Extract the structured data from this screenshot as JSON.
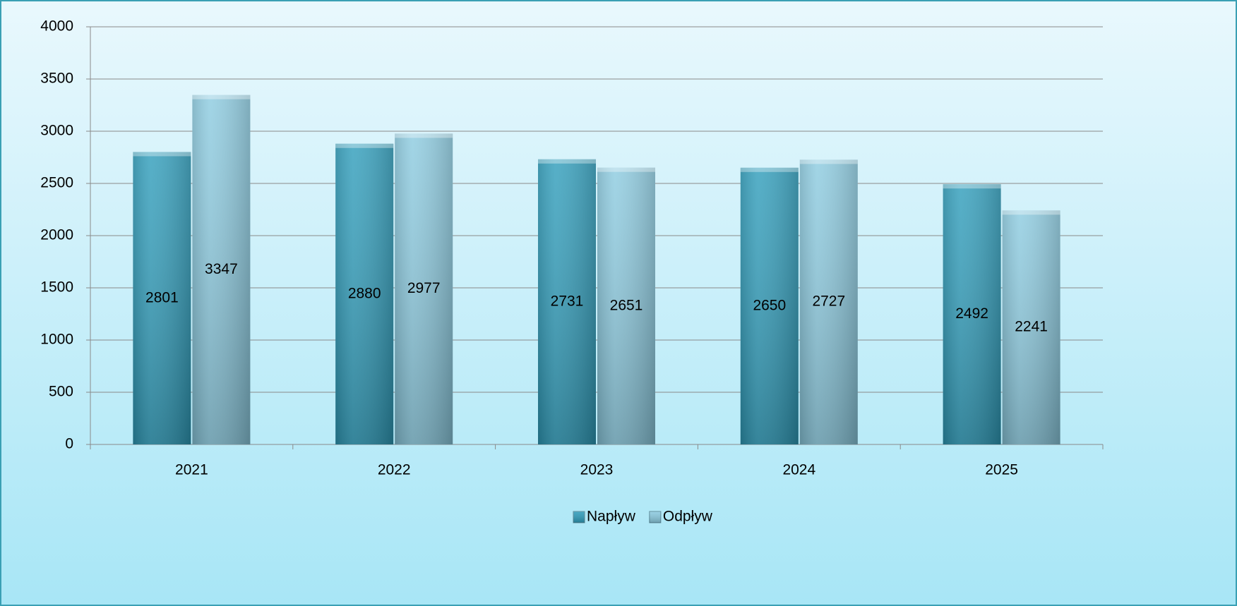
{
  "chart_data": {
    "type": "bar",
    "categories": [
      "2021",
      "2022",
      "2023",
      "2024",
      "2025"
    ],
    "series": [
      {
        "name": "Napływ",
        "color": "#2f9dbb",
        "values": [
          2801,
          2880,
          2731,
          2650,
          2492
        ]
      },
      {
        "name": "Odpływ",
        "color": "#8ccbe0",
        "values": [
          3347,
          2977,
          2651,
          2727,
          2241
        ]
      }
    ],
    "ylim": [
      0,
      4000
    ],
    "yticks": [
      0,
      500,
      1000,
      1500,
      2000,
      2500,
      3000,
      3500,
      4000
    ],
    "grid": true,
    "legend": "bottom"
  }
}
